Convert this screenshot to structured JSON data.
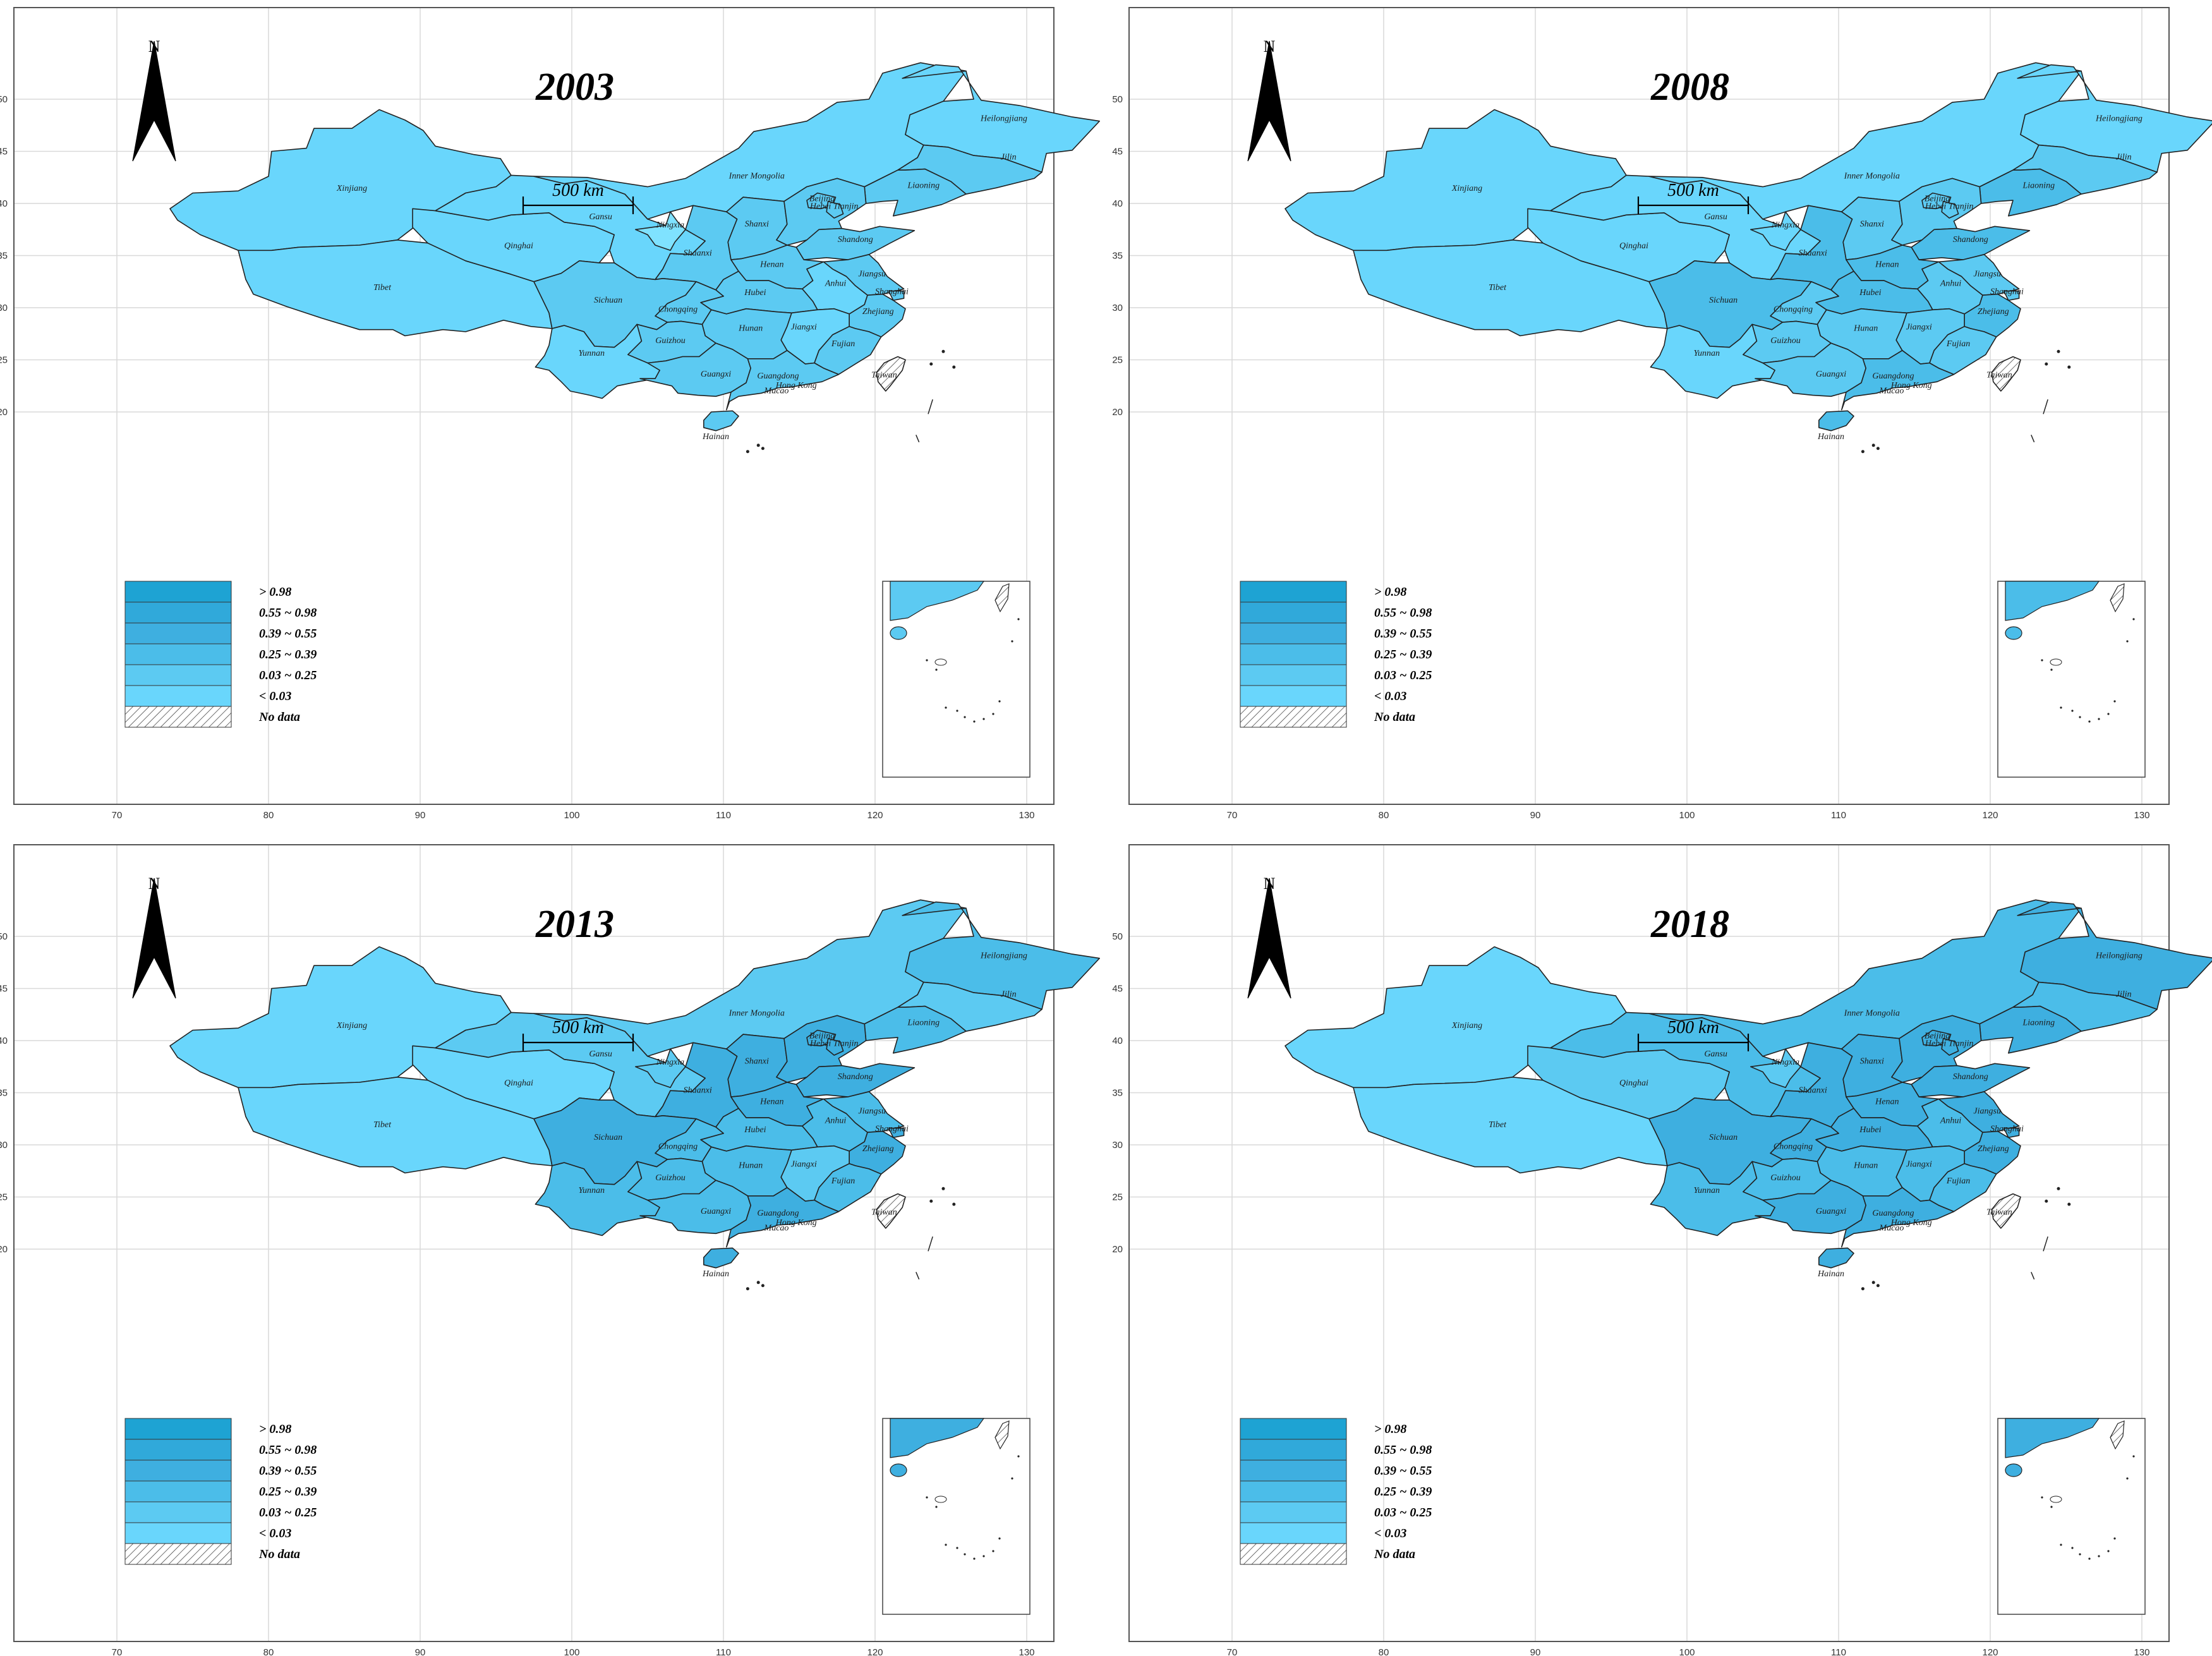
{
  "panels": [
    {
      "year": "2003",
      "colors": {
        "Xinjiang": "#69d6fc",
        "Tibet": "#69d6fc",
        "Qinghai": "#69d6fc",
        "Gansu": "#69d6fc",
        "Inner Mongolia": "#69d6fc",
        "Heilongjiang": "#69d6fc",
        "Jilin": "#5ccaf2",
        "Liaoning": "#5ccaf2",
        "Ningxia": "#7fe2ff",
        "Shaanxi": "#5ccaf2",
        "Shanxi": "#5ccaf2",
        "Hebei": "#5ccaf2",
        "Beijing": "#5ccaf2",
        "Tianjin": "#5ccaf2",
        "Shandong": "#5ccaf2",
        "Henan": "#5ccaf2",
        "Jiangsu": "#5ccaf2",
        "Anhui": "#69d6fc",
        "Shanghai": "#5ccaf2",
        "Hubei": "#5ccaf2",
        "Sichuan": "#5ccaf2",
        "Chongqing": "#5ccaf2",
        "Hunan": "#5ccaf2",
        "Jiangxi": "#69d6fc",
        "Zhejiang": "#5ccaf2",
        "Fujian": "#5ccaf2",
        "Guizhou": "#5ccaf2",
        "Yunnan": "#69d6fc",
        "Guangxi": "#5ccaf2",
        "Guangdong": "#5ccaf2",
        "Hainan": "#5ccaf2",
        "Taiwan": "hatch"
      }
    },
    {
      "year": "2008",
      "colors": {
        "Xinjiang": "#69d6fc",
        "Tibet": "#69d6fc",
        "Qinghai": "#69d6fc",
        "Gansu": "#69d6fc",
        "Inner Mongolia": "#69d6fc",
        "Heilongjiang": "#69d6fc",
        "Jilin": "#5ccaf2",
        "Liaoning": "#4bbde9",
        "Ningxia": "#69d6fc",
        "Shaanxi": "#4bbde9",
        "Shanxi": "#5ccaf2",
        "Hebei": "#5ccaf2",
        "Beijing": "#5ccaf2",
        "Tianjin": "#5ccaf2",
        "Shandong": "#4bbde9",
        "Henan": "#4bbde9",
        "Jiangsu": "#5ccaf2",
        "Anhui": "#5ccaf2",
        "Shanghai": "#5ccaf2",
        "Hubei": "#4bbde9",
        "Sichuan": "#4bbde9",
        "Chongqing": "#5ccaf2",
        "Hunan": "#5ccaf2",
        "Jiangxi": "#5ccaf2",
        "Zhejiang": "#4bbde9",
        "Fujian": "#5ccaf2",
        "Guizhou": "#5ccaf2",
        "Yunnan": "#69d6fc",
        "Guangxi": "#5ccaf2",
        "Guangdong": "#4bbde9",
        "Hainan": "#4bbde9",
        "Taiwan": "hatch"
      }
    },
    {
      "year": "2013",
      "colors": {
        "Xinjiang": "#69d6fc",
        "Tibet": "#69d6fc",
        "Qinghai": "#69d6fc",
        "Gansu": "#5ccaf2",
        "Inner Mongolia": "#5ccaf2",
        "Heilongjiang": "#4bbde9",
        "Jilin": "#5ccaf2",
        "Liaoning": "#4bbde9",
        "Ningxia": "#5ccaf2",
        "Shaanxi": "#3eafe0",
        "Shanxi": "#3eafe0",
        "Hebei": "#3eafe0",
        "Beijing": "#3eafe0",
        "Tianjin": "#3eafe0",
        "Shandong": "#3eafe0",
        "Henan": "#3eafe0",
        "Jiangsu": "#4bbde9",
        "Anhui": "#4bbde9",
        "Shanghai": "#3eafe0",
        "Hubei": "#4bbde9",
        "Sichuan": "#3eafe0",
        "Chongqing": "#4bbde9",
        "Hunan": "#4bbde9",
        "Jiangxi": "#5ccaf2",
        "Zhejiang": "#3eafe0",
        "Fujian": "#4bbde9",
        "Guizhou": "#4bbde9",
        "Yunnan": "#4bbde9",
        "Guangxi": "#4bbde9",
        "Guangdong": "#3eafe0",
        "Hainan": "#3eafe0",
        "Taiwan": "hatch"
      }
    },
    {
      "year": "2018",
      "colors": {
        "Xinjiang": "#69d6fc",
        "Tibet": "#69d6fc",
        "Qinghai": "#5ccaf2",
        "Gansu": "#4bbde9",
        "Inner Mongolia": "#4bbde9",
        "Heilongjiang": "#3eafe0",
        "Jilin": "#4bbde9",
        "Liaoning": "#3eafe0",
        "Ningxia": "#5ccaf2",
        "Shaanxi": "#3eafe0",
        "Shanxi": "#3eafe0",
        "Hebei": "#3eafe0",
        "Beijing": "#3eafe0",
        "Tianjin": "#3eafe0",
        "Shandong": "#3eafe0",
        "Henan": "#3eafe0",
        "Jiangsu": "#3eafe0",
        "Anhui": "#4bbde9",
        "Shanghai": "#3eafe0",
        "Hubei": "#3eafe0",
        "Sichuan": "#3eafe0",
        "Chongqing": "#3eafe0",
        "Hunan": "#4bbde9",
        "Jiangxi": "#4bbde9",
        "Zhejiang": "#3eafe0",
        "Fujian": "#4bbde9",
        "Guizhou": "#4bbde9",
        "Yunnan": "#4bbde9",
        "Guangxi": "#3eafe0",
        "Guangdong": "#3eafe0",
        "Hainan": "#3eafe0",
        "Taiwan": "hatch"
      }
    }
  ],
  "map": {
    "north_label": "N",
    "scale_label": "500 km",
    "x_ticks": [
      "70",
      "80",
      "90",
      "100",
      "110",
      "120",
      "130"
    ],
    "y_ticks": [
      "50",
      "45",
      "40",
      "35",
      "30",
      "25",
      "20"
    ],
    "province_labels": [
      "Xinjiang",
      "Tibet",
      "Qinghai",
      "Gansu",
      "Inner Mongolia",
      "Heilongjiang",
      "Jilin",
      "Liaoning",
      "Ningxia",
      "Shaanxi",
      "Shanxi",
      "Beijing",
      "Hebei Tianjin",
      "Shandong",
      "Henan",
      "Jiangsu",
      "Anhui",
      "Shanghai",
      "Hubei",
      "Sichuan",
      "Chongqing",
      "Hunan",
      "Jiangxi",
      "Zhejiang",
      "Fujian",
      "Guizhou",
      "Yunnan",
      "Guangxi",
      "Guangdong",
      "Hong Kong",
      "Macao",
      "Hainan",
      "Taiwan"
    ]
  },
  "legend": [
    {
      "label": "> 0.98",
      "color": "#1ea3d3"
    },
    {
      "label": "0.55 ~ 0.98",
      "color": "#30a9da"
    },
    {
      "label": "0.39 ~ 0.55",
      "color": "#3eafe0"
    },
    {
      "label": "0.25 ~ 0.39",
      "color": "#4bbde9"
    },
    {
      "label": "0.03 ~ 0.25",
      "color": "#5ccaf2"
    },
    {
      "label": "< 0.03",
      "color": "#69d6fc"
    },
    {
      "label": "No data",
      "color": "hatch"
    }
  ]
}
